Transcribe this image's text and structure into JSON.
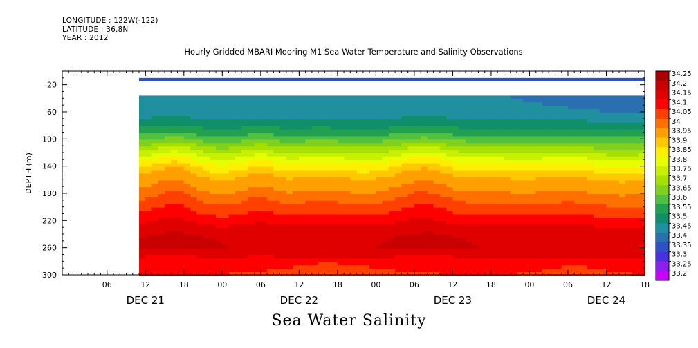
{
  "header": {
    "longitude": "LONGITUDE : 122W(-122)",
    "latitude": "LATITUDE : 36.8N",
    "year": "YEAR : 2012"
  },
  "footer_title": "Sea Water Salinity",
  "chart_data": {
    "type": "heatmap",
    "title": "Hourly Gridded MBARI Mooring M1 Sea Water Temperature and Salinity Observations",
    "ylabel": "DEPTH (m)",
    "xlabel": "",
    "x_hour_ticks": [
      "06",
      "12",
      "18",
      "00",
      "06",
      "12",
      "18",
      "00",
      "06",
      "12",
      "18",
      "00",
      "06",
      "12",
      "18"
    ],
    "x_day_labels": [
      "DEC 21",
      "DEC 22",
      "DEC 23",
      "DEC 24"
    ],
    "x_range_hours_from_dec20_23h": [
      0,
      91
    ],
    "data_start_hour": 12,
    "y_ticks": [
      20,
      60,
      100,
      140,
      180,
      220,
      260,
      300
    ],
    "ylim": [
      300,
      0
    ],
    "colorbar_levels": [
      "34.25",
      "34.2",
      "34.15",
      "34.1",
      "34.05",
      "34",
      "33.95",
      "33.9",
      "33.85",
      "33.8",
      "33.75",
      "33.7",
      "33.65",
      "33.6",
      "33.55",
      "33.5",
      "33.45",
      "33.4",
      "33.35",
      "33.3",
      "33.25",
      "33.2"
    ],
    "colorbar_colors": [
      "#a80000",
      "#c80000",
      "#e10000",
      "#ff0000",
      "#ff4000",
      "#ff7000",
      "#ff9f00",
      "#ffc800",
      "#ffee00",
      "#e6ff00",
      "#c8f000",
      "#a6e000",
      "#80d020",
      "#50c040",
      "#20a050",
      "#108f6a",
      "#2090a0",
      "#2a70b0",
      "#3050c8",
      "#4a30e0",
      "#8a20ee",
      "#c800ff"
    ],
    "profile_depths": [
      40,
      60,
      80,
      100,
      120,
      140,
      160,
      180,
      200,
      220,
      240,
      260,
      280,
      300
    ],
    "profile_values": [
      33.45,
      33.47,
      33.53,
      33.62,
      33.74,
      33.86,
      33.95,
      34.0,
      34.06,
      34.12,
      34.19,
      34.2,
      34.13,
      34.1
    ],
    "surface_depth_range_m": [
      10,
      15
    ],
    "surface_value": 33.35,
    "gap_depth_range_m": [
      15,
      36
    ]
  }
}
